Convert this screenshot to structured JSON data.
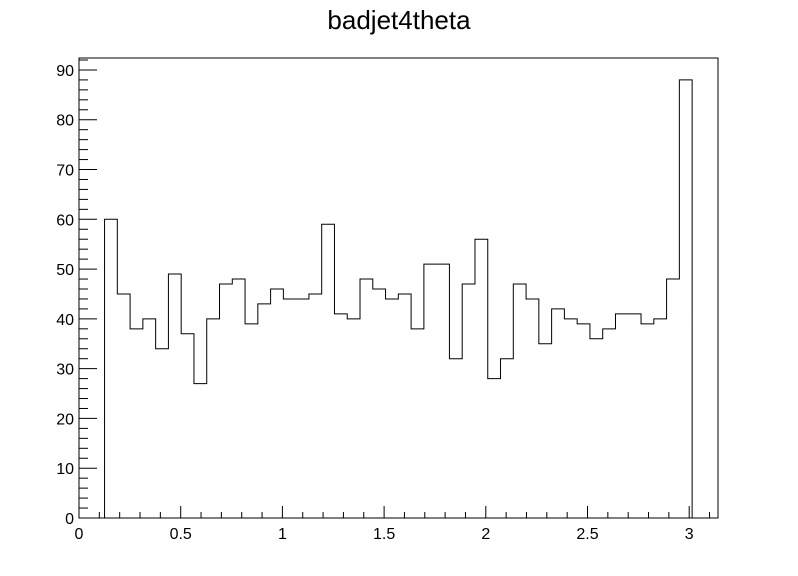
{
  "chart_data": {
    "type": "histogram",
    "title": "badjet4theta",
    "xlabel": "",
    "ylabel": "",
    "xlim": [
      0,
      3.1416
    ],
    "ylim": [
      0,
      92.4
    ],
    "bin_width": 0.0628,
    "bin_edges_start": 0.0,
    "x_ticks": [
      0,
      0.5,
      1,
      1.5,
      2,
      2.5,
      3
    ],
    "x_tick_labels": [
      "0",
      "0.5",
      "1",
      "1.5",
      "2",
      "2.5",
      "3"
    ],
    "y_ticks": [
      0,
      10,
      20,
      30,
      40,
      50,
      60,
      70,
      80,
      90
    ],
    "y_tick_labels": [
      "0",
      "10",
      "20",
      "30",
      "40",
      "50",
      "60",
      "70",
      "80",
      "90"
    ],
    "values": [
      0,
      0,
      60,
      45,
      38,
      40,
      34,
      49,
      37,
      27,
      40,
      47,
      48,
      39,
      43,
      46,
      44,
      44,
      45,
      59,
      41,
      40,
      48,
      46,
      44,
      45,
      38,
      51,
      51,
      32,
      47,
      56,
      28,
      32,
      47,
      44,
      35,
      42,
      40,
      39,
      36,
      38,
      41,
      41,
      39,
      40,
      48,
      88,
      0,
      0
    ],
    "line_color": "#000000",
    "grid": false,
    "legend": "none"
  }
}
